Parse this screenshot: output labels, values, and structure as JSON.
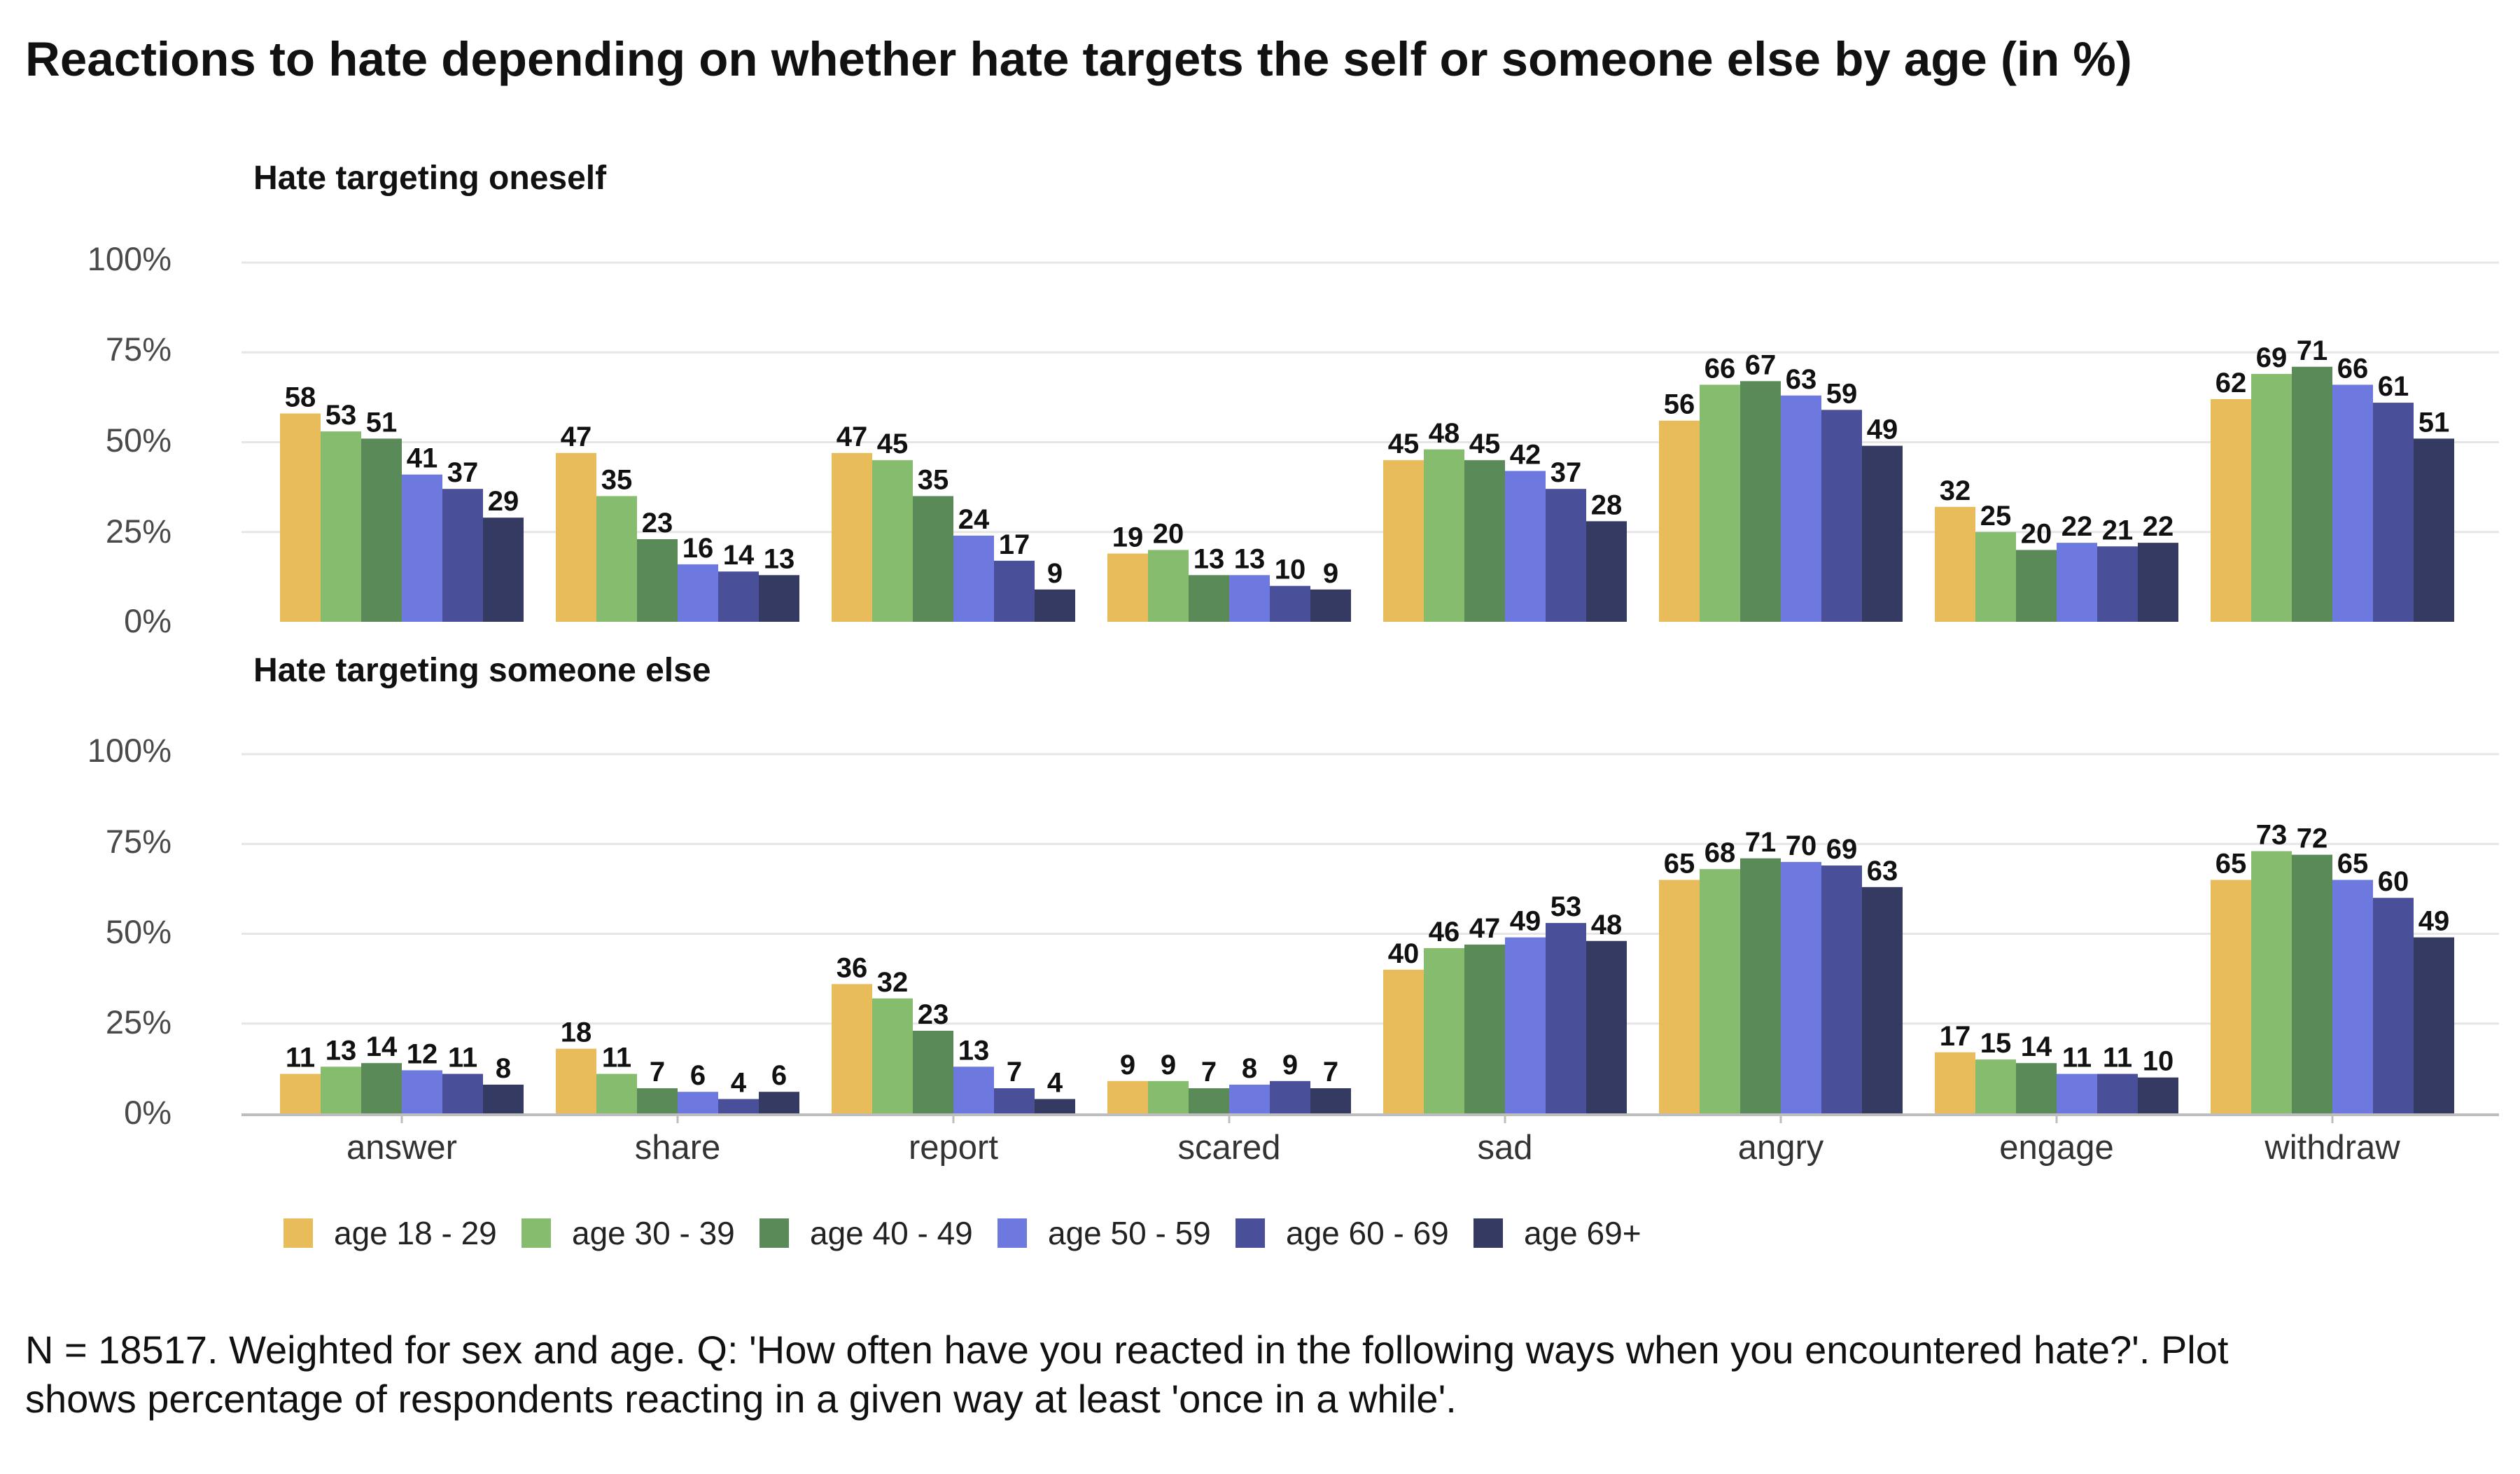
{
  "chart_data": {
    "type": "bar",
    "title": "Reactions to hate depending on whether hate targets the self or someone else by age (in %)",
    "categories": [
      "answer",
      "share",
      "report",
      "scared",
      "sad",
      "angry",
      "engage",
      "withdraw"
    ],
    "y_ticks": [
      "0%",
      "25%",
      "50%",
      "75%",
      "100%"
    ],
    "ylim": [
      0,
      100
    ],
    "grid": true,
    "legend_position": "bottom",
    "series_colors": [
      "#E8BC5A",
      "#86BC6E",
      "#5A8A57",
      "#6E79DF",
      "#4A4F9A",
      "#343A62"
    ],
    "legend": [
      "age 18 - 29",
      "age 30 - 39",
      "age 40 - 49",
      "age 50 - 59",
      "age 60 - 69",
      "age 69+"
    ],
    "panels": [
      {
        "title": "Hate targeting oneself",
        "series": [
          {
            "name": "age 18 - 29",
            "values": [
              58,
              47,
              47,
              19,
              45,
              56,
              32,
              62
            ]
          },
          {
            "name": "age 30 - 39",
            "values": [
              53,
              35,
              45,
              20,
              48,
              66,
              25,
              69
            ]
          },
          {
            "name": "age 40 - 49",
            "values": [
              51,
              23,
              35,
              13,
              45,
              67,
              20,
              71
            ]
          },
          {
            "name": "age 50 - 59",
            "values": [
              41,
              16,
              24,
              13,
              42,
              63,
              22,
              66
            ]
          },
          {
            "name": "age 60 - 69",
            "values": [
              37,
              14,
              17,
              10,
              37,
              59,
              21,
              61
            ]
          },
          {
            "name": "age 69+",
            "values": [
              29,
              13,
              9,
              9,
              28,
              49,
              22,
              51
            ]
          }
        ]
      },
      {
        "title": "Hate targeting someone else",
        "series": [
          {
            "name": "age 18 - 29",
            "values": [
              11,
              18,
              36,
              9,
              40,
              65,
              17,
              65
            ]
          },
          {
            "name": "age 30 - 39",
            "values": [
              13,
              11,
              32,
              9,
              46,
              68,
              15,
              73
            ]
          },
          {
            "name": "age 40 - 49",
            "values": [
              14,
              7,
              23,
              7,
              47,
              71,
              14,
              72
            ]
          },
          {
            "name": "age 50 - 59",
            "values": [
              12,
              6,
              13,
              8,
              49,
              70,
              11,
              65
            ]
          },
          {
            "name": "age 60 - 69",
            "values": [
              11,
              4,
              7,
              9,
              53,
              69,
              11,
              60
            ]
          },
          {
            "name": "age 69+",
            "values": [
              8,
              6,
              4,
              7,
              48,
              63,
              10,
              49
            ]
          }
        ]
      }
    ],
    "caption_lines": [
      "N = 18517. Weighted for sex and age. Q: 'How often have you reacted in the following ways when you encountered hate?'. Plot",
      "shows percentage of respondents reacting in a given way at least 'once in a while'."
    ]
  }
}
